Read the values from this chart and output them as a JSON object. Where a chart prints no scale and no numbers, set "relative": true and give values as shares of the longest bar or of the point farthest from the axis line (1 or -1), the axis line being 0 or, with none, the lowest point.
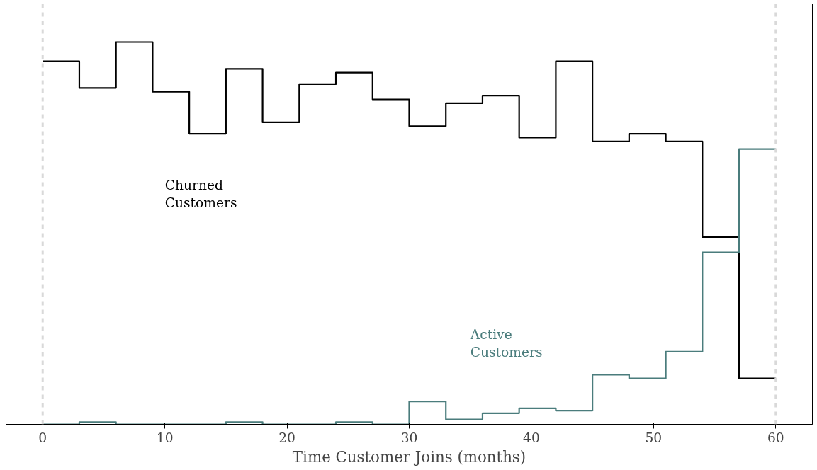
{
  "chart_data": {
    "type": "step",
    "relative": true,
    "xlabel": "Time Customer Joins (months)",
    "x": [
      0,
      3,
      6,
      9,
      12,
      15,
      18,
      21,
      24,
      27,
      30,
      33,
      36,
      39,
      42,
      45,
      48,
      51,
      54,
      57,
      60
    ],
    "xlim": [
      -3,
      63
    ],
    "xticks": [
      0,
      10,
      20,
      30,
      40,
      50,
      60
    ],
    "grid": false,
    "series": [
      {
        "name": "Churned\nCustomers",
        "color": "#000000",
        "values": [
          0.95,
          0.88,
          1.0,
          0.87,
          0.76,
          0.93,
          0.79,
          0.89,
          0.92,
          0.85,
          0.78,
          0.84,
          0.86,
          0.75,
          0.95,
          0.74,
          0.76,
          0.74,
          0.49,
          0.12,
          0.12
        ]
      },
      {
        "name": "Active\nCustomers",
        "color": "#4a7c7c",
        "values": [
          0,
          0.006,
          0,
          0,
          0,
          0.006,
          0,
          0,
          0.006,
          0,
          0.06,
          0.013,
          0.029,
          0.042,
          0.036,
          0.13,
          0.12,
          0.19,
          0.45,
          0.72,
          0.72
        ]
      }
    ],
    "ref_lines": [
      {
        "axis": "x",
        "value": 0,
        "color": "#d9d9d9",
        "line_style": "dashed"
      },
      {
        "axis": "x",
        "value": 60,
        "color": "#d9d9d9",
        "line_style": "dashed"
      }
    ]
  }
}
